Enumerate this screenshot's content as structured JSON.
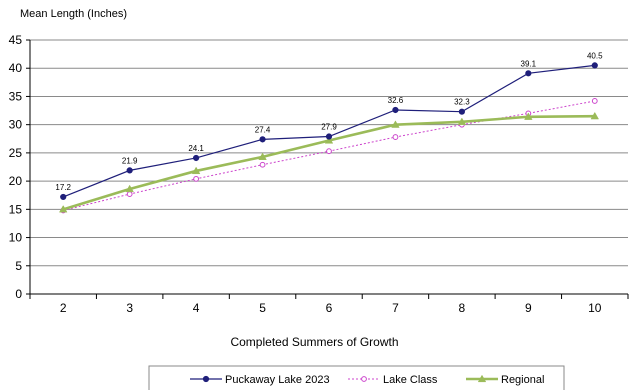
{
  "chart_data": {
    "type": "line",
    "title": "",
    "ylabel": "Mean Length (Inches)",
    "xlabel": "Completed Summers of Growth",
    "x": [
      2,
      3,
      4,
      5,
      6,
      7,
      8,
      9,
      10
    ],
    "ylim": [
      0,
      45
    ],
    "yticks": [
      0,
      5,
      10,
      15,
      20,
      25,
      30,
      35,
      40,
      45
    ],
    "grid": true,
    "legend_position": "bottom",
    "series": [
      {
        "name": "Puckaway Lake 2023",
        "color": "#1f1f7a",
        "style": "solid",
        "marker": "circle-filled",
        "values": [
          17.2,
          21.9,
          24.1,
          27.4,
          27.9,
          32.6,
          32.3,
          39.1,
          40.5
        ],
        "data_labels": [
          "17.2",
          "21.9",
          "24.1",
          "27.4",
          "27.9",
          "32.6",
          "32.3",
          "39.1",
          "40.5"
        ]
      },
      {
        "name": "Lake Class",
        "color": "#cc44cc",
        "style": "dotted",
        "marker": "circle-open",
        "values": [
          14.8,
          17.7,
          20.4,
          22.9,
          25.3,
          27.8,
          30.0,
          32.0,
          34.2
        ]
      },
      {
        "name": "Regional",
        "color": "#9bbb59",
        "style": "solid-thick",
        "marker": "triangle",
        "values": [
          15.0,
          18.6,
          21.8,
          24.3,
          27.2,
          30.0,
          30.5,
          31.4,
          31.5
        ]
      }
    ]
  }
}
